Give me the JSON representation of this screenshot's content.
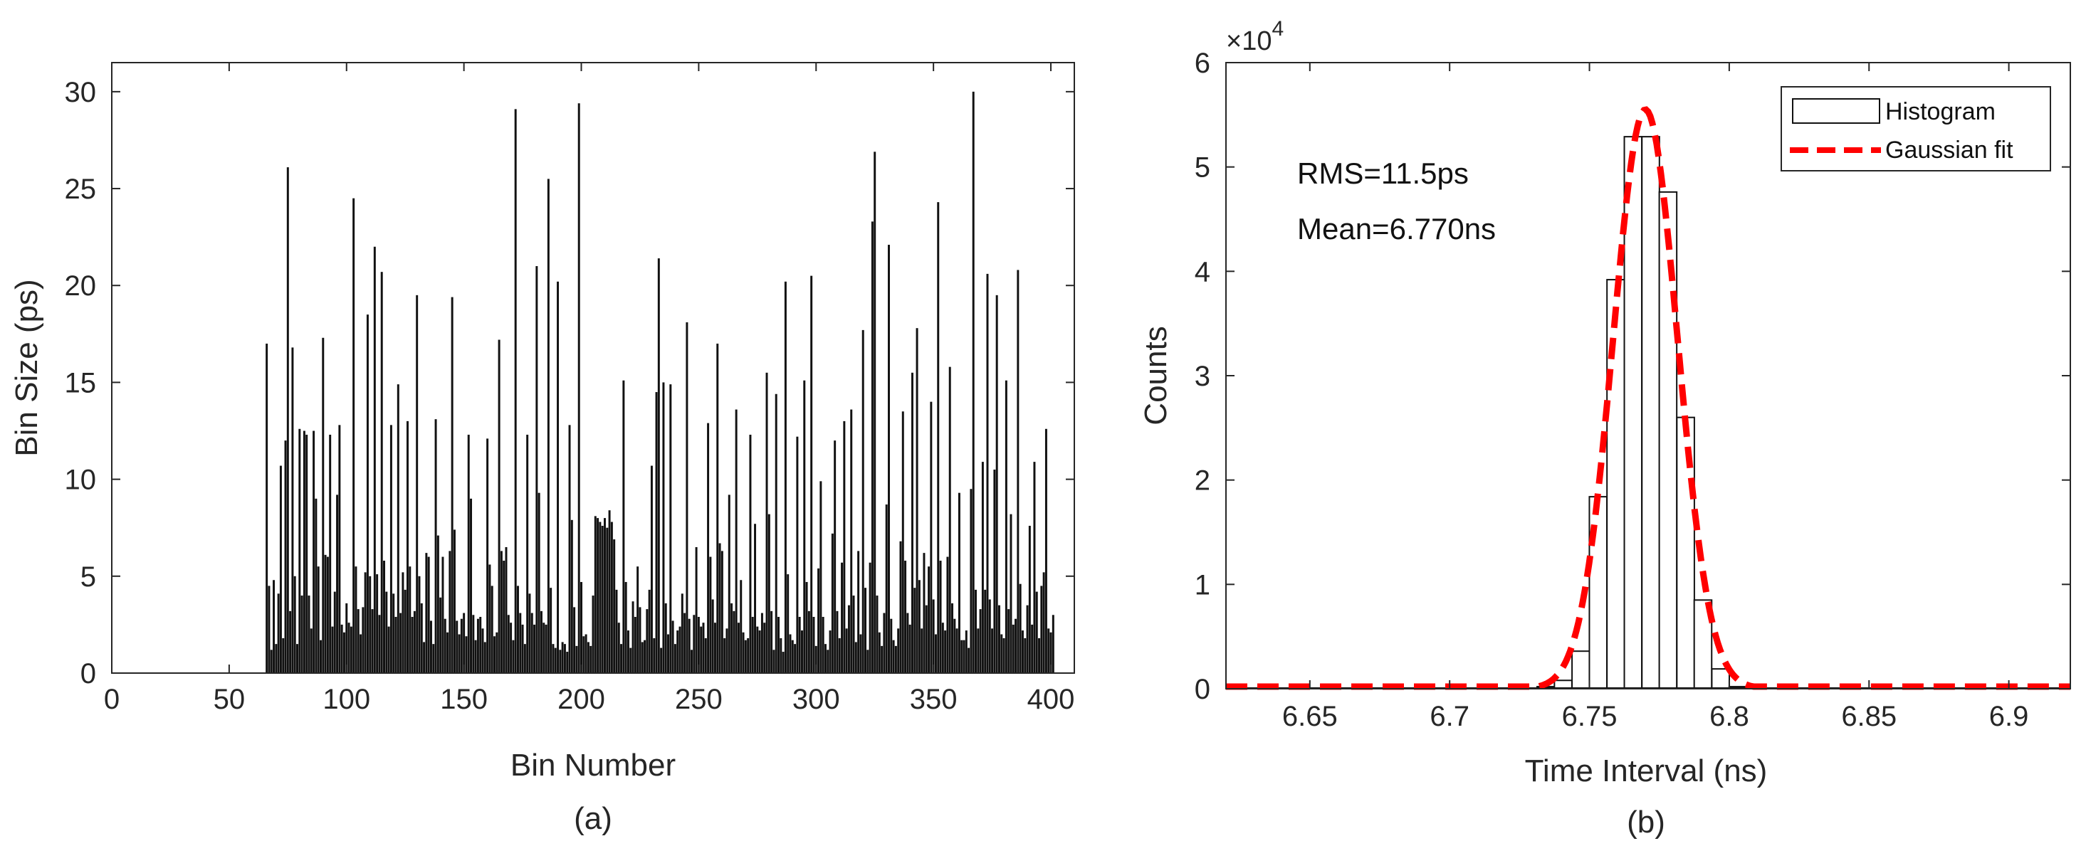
{
  "chart_data": [
    {
      "id": "a",
      "type": "bar",
      "caption": "(a)",
      "xlabel": "Bin Number",
      "ylabel": "Bin Size (ps)",
      "xlim": [
        0,
        410
      ],
      "ylim": [
        0,
        31.5
      ],
      "xticks": [
        "0",
        "50",
        "100",
        "150",
        "200",
        "250",
        "300",
        "350",
        "400"
      ],
      "yticks": [
        "0",
        "5",
        "10",
        "15",
        "20",
        "25",
        "30"
      ],
      "bar_color": "#111111",
      "x_start": 66,
      "values": [
        17.0,
        4.5,
        1.2,
        4.8,
        1.5,
        4.1,
        10.7,
        1.8,
        12.0,
        26.1,
        3.2,
        16.8,
        5.0,
        1.5,
        12.6,
        4.0,
        12.5,
        12.3,
        4.0,
        2.3,
        12.5,
        9.0,
        5.5,
        1.7,
        17.3,
        6.1,
        6.0,
        12.3,
        2.4,
        4.2,
        9.2,
        12.8,
        2.5,
        2.1,
        3.6,
        2.6,
        2.4,
        24.5,
        5.5,
        3.3,
        2.0,
        3.4,
        5.2,
        18.5,
        5.0,
        3.3,
        22.0,
        5.1,
        3.0,
        20.7,
        5.8,
        4.2,
        2.4,
        12.8,
        4.1,
        2.9,
        14.9,
        3.1,
        5.2,
        4.3,
        13.0,
        5.5,
        2.9,
        3.2,
        19.5,
        5.0,
        3.6,
        1.6,
        6.2,
        6.0,
        2.7,
        1.5,
        13.1,
        7.1,
        3.9,
        6.0,
        2.8,
        2.1,
        6.3,
        19.4,
        7.4,
        2.7,
        2.0,
        2.8,
        3.1,
        1.9,
        12.3,
        9.0,
        3.0,
        1.7,
        2.8,
        2.9,
        2.3,
        1.6,
        12.1,
        5.6,
        4.5,
        1.9,
        2.1,
        17.2,
        6.3,
        5.8,
        6.5,
        3.0,
        2.6,
        1.7,
        29.1,
        4.5,
        3.1,
        2.5,
        1.5,
        12.3,
        4.1,
        3.1,
        2.5,
        21.0,
        9.3,
        3.2,
        2.6,
        2.5,
        25.5,
        4.4,
        1.5,
        1.3,
        20.2,
        1.2,
        1.6,
        1.5,
        1.1,
        12.8,
        7.9,
        3.4,
        1.4,
        29.4,
        4.7,
        1.9,
        2.0,
        1.6,
        1.4,
        4.0,
        8.1,
        8.0,
        7.8,
        7.6,
        8.0,
        7.5,
        8.4,
        7.8,
        6.9,
        4.3,
        2.6,
        1.5,
        15.1,
        4.7,
        2.2,
        1.3,
        3.7,
        2.9,
        5.5,
        3.4,
        1.6,
        1.7,
        3.3,
        4.3,
        10.7,
        1.8,
        14.5,
        21.4,
        1.3,
        15.0,
        3.6,
        2.0,
        14.9,
        2.7,
        1.5,
        2.2,
        2.4,
        4.1,
        3.1,
        18.1,
        2.8,
        1.2,
        3.0,
        6.5,
        2.9,
        2.4,
        2.6,
        1.8,
        12.9,
        6.0,
        3.8,
        2.6,
        17.0,
        6.7,
        6.3,
        1.8,
        2.3,
        9.2,
        3.6,
        3.2,
        13.6,
        2.6,
        4.8,
        2.1,
        1.7,
        1.8,
        12.3,
        2.9,
        7.7,
        2.4,
        2.2,
        3.1,
        2.6,
        15.5,
        8.2,
        3.2,
        1.2,
        14.4,
        2.9,
        1.8,
        1.1,
        20.2,
        5.1,
        2.0,
        1.7,
        1.5,
        12.2,
        2.9,
        2.2,
        15.1,
        4.7,
        3.2,
        20.5,
        2.9,
        1.4,
        5.4,
        9.9,
        2.9,
        1.5,
        1.2,
        2.2,
        7.2,
        12.0,
        3.2,
        1.8,
        5.7,
        13.0,
        2.3,
        3.5,
        13.6,
        4.0,
        1.6,
        6.3,
        2.0,
        17.7,
        4.4,
        1.2,
        5.7,
        23.3,
        26.9,
        4.0,
        2.1,
        1.4,
        3.1,
        8.7,
        22.1,
        2.8,
        1.7,
        1.4,
        2.3,
        6.8,
        13.5,
        5.8,
        3.1,
        2.5,
        15.5,
        4.4,
        17.8,
        4.8,
        2.3,
        6.2,
        3.5,
        5.5,
        14.0,
        3.8,
        2.0,
        24.3,
        5.8,
        2.6,
        2.2,
        6.0,
        15.8,
        3.6,
        2.8,
        2.3,
        9.3,
        1.7,
        1.7,
        2.2,
        1.3,
        9.5,
        30.0,
        4.3,
        2.3,
        3.3,
        10.9,
        4.3,
        20.6,
        3.8,
        2.3,
        10.5,
        19.5,
        3.5,
        2.0,
        1.8,
        15.1,
        3.3,
        8.2,
        2.5,
        2.8,
        20.8,
        4.6,
        2.2,
        1.8,
        3.5,
        7.6,
        2.5,
        10.9,
        4.2,
        1.8,
        4.5,
        5.2,
        12.6,
        2.3,
        2.1,
        3.0
      ]
    },
    {
      "id": "b",
      "type": "bar",
      "caption": "(b)",
      "xlabel": "Time Interval (ns)",
      "ylabel": "Counts",
      "xlim": [
        6.62,
        6.922
      ],
      "ylim": [
        0,
        60000
      ],
      "exponent_label": "×10",
      "exponent_power": "4",
      "xticks": [
        "6.65",
        "6.7",
        "6.75",
        "6.8",
        "6.85",
        "6.9"
      ],
      "yticks": [
        "0",
        "1",
        "2",
        "3",
        "4",
        "5",
        "6"
      ],
      "annotations": [
        "RMS=11.5ps",
        "Mean=6.770ns"
      ],
      "legend": {
        "placement": "top-right",
        "entries": [
          "Histogram",
          "Gaussian fit"
        ]
      },
      "histogram": {
        "bin_width": 0.00625,
        "bin_centers": [
          6.7344,
          6.7406,
          6.7469,
          6.7531,
          6.7594,
          6.7656,
          6.7719,
          6.7781,
          6.7844,
          6.7906,
          6.7969,
          6.8031
        ],
        "counts": [
          200,
          800,
          3600,
          18400,
          39200,
          52900,
          52900,
          47600,
          26000,
          8500,
          1900,
          200
        ],
        "edge_color": "#111111",
        "fill_color": "#ffffff"
      },
      "gaussian_fit": {
        "mean": 6.77,
        "sigma": 0.0115,
        "amplitude": 55500,
        "color": "#ff0000",
        "style": "dashed"
      }
    }
  ]
}
